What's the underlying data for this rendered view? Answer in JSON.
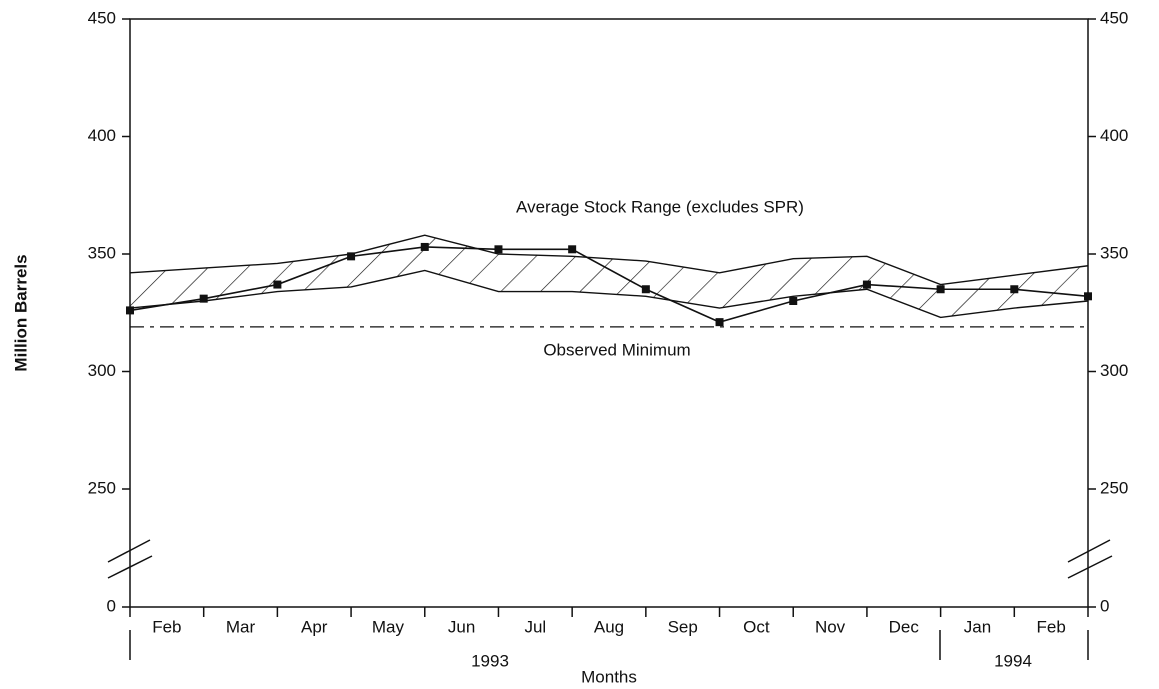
{
  "chart_data": {
    "type": "band-line",
    "band_label": "Average Stock Range (excludes SPR)",
    "minimum_label": "Observed Minimum",
    "ylabel": "Million Barrels",
    "xlabel": "Months",
    "categories": [
      "Feb",
      "Mar",
      "Apr",
      "May",
      "Jun",
      "Jul",
      "Aug",
      "Sep",
      "Oct",
      "Nov",
      "Dec",
      "Jan",
      "Feb"
    ],
    "years": [
      "1993",
      "1994"
    ],
    "x": [
      0,
      1,
      2,
      3,
      4,
      5,
      6,
      7,
      8,
      9,
      10,
      11,
      12,
      13
    ],
    "xlim": [
      0,
      13
    ],
    "upper": [
      342,
      344,
      346,
      350,
      358,
      350,
      349,
      347,
      342,
      348,
      349,
      337,
      341,
      345
    ],
    "lower": [
      327,
      330,
      334,
      336,
      343,
      334,
      334,
      332,
      327,
      332,
      335,
      323,
      327,
      330
    ],
    "stocks": [
      326,
      331,
      337,
      349,
      353,
      352,
      352,
      335,
      321,
      330,
      337,
      335,
      335,
      332
    ],
    "observed_minimum": 319,
    "ylim": [
      0,
      450
    ],
    "ybreak": [
      0,
      250
    ],
    "yticks": [
      0,
      250,
      300,
      350,
      400,
      450
    ],
    "color": "#111111"
  }
}
